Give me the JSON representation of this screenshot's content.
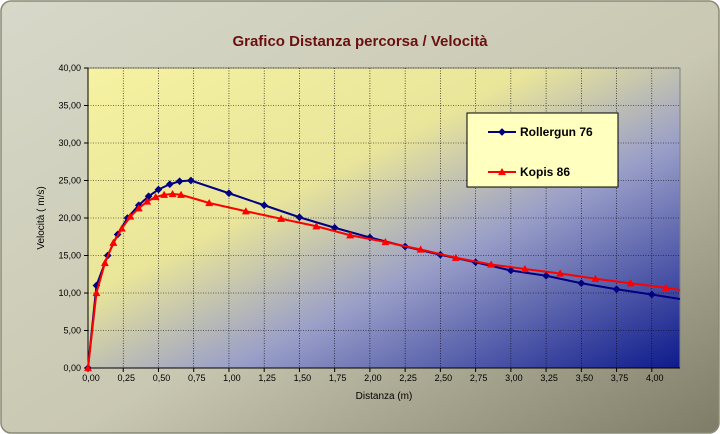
{
  "chart_data": {
    "type": "line",
    "title": "Grafico Distanza percorsa / Velocità",
    "xlabel": "Distanza (m)",
    "ylabel": "Velocità ( m/s)",
    "xlim": [
      0,
      4.2
    ],
    "ylim": [
      0,
      40
    ],
    "x_ticks": [
      "0,00",
      "0,25",
      "0,50",
      "0,75",
      "1,00",
      "1,25",
      "1,50",
      "1,75",
      "2,00",
      "2,25",
      "2,50",
      "2,75",
      "3,00",
      "3,25",
      "3,50",
      "3,75",
      "4,00"
    ],
    "y_ticks": [
      "0,00",
      "5,00",
      "10,00",
      "15,00",
      "20,00",
      "25,00",
      "30,00",
      "35,00",
      "40,00"
    ],
    "grid": true,
    "legend_position": "top-right",
    "series": [
      {
        "name": "Rollergun 76",
        "color": "#000080",
        "marker": "diamond",
        "points": [
          [
            0.0,
            0.0
          ],
          [
            0.06,
            11.0
          ],
          [
            0.14,
            15.0
          ],
          [
            0.21,
            17.8
          ],
          [
            0.28,
            20.0
          ],
          [
            0.36,
            21.7
          ],
          [
            0.43,
            22.9
          ],
          [
            0.5,
            23.8
          ],
          [
            0.58,
            24.5
          ],
          [
            0.65,
            24.9
          ],
          [
            0.73,
            25.0
          ],
          [
            1.0,
            23.3
          ],
          [
            1.25,
            21.7
          ],
          [
            1.5,
            20.1
          ],
          [
            1.75,
            18.7
          ],
          [
            2.0,
            17.4
          ],
          [
            2.25,
            16.2
          ],
          [
            2.5,
            15.1
          ],
          [
            2.75,
            14.1
          ],
          [
            3.0,
            13.0
          ],
          [
            3.25,
            12.3
          ],
          [
            3.5,
            11.3
          ],
          [
            3.75,
            10.5
          ],
          [
            4.0,
            9.8
          ],
          [
            4.2,
            9.2
          ]
        ]
      },
      {
        "name": "Kopis 86",
        "color": "#ff0000",
        "marker": "triangle",
        "points": [
          [
            0.0,
            0.0
          ],
          [
            0.06,
            10.0
          ],
          [
            0.12,
            14.0
          ],
          [
            0.18,
            16.7
          ],
          [
            0.24,
            18.6
          ],
          [
            0.3,
            20.2
          ],
          [
            0.36,
            21.3
          ],
          [
            0.42,
            22.2
          ],
          [
            0.48,
            22.8
          ],
          [
            0.54,
            23.1
          ],
          [
            0.6,
            23.2
          ],
          [
            0.66,
            23.1
          ],
          [
            0.86,
            22.0
          ],
          [
            1.12,
            20.9
          ],
          [
            1.37,
            19.9
          ],
          [
            1.62,
            18.9
          ],
          [
            1.86,
            17.7
          ],
          [
            2.11,
            16.8
          ],
          [
            2.36,
            15.8
          ],
          [
            2.61,
            14.7
          ],
          [
            2.86,
            13.8
          ],
          [
            3.1,
            13.2
          ],
          [
            3.35,
            12.6
          ],
          [
            3.6,
            11.9
          ],
          [
            3.85,
            11.3
          ],
          [
            4.1,
            10.7
          ],
          [
            4.2,
            10.4
          ]
        ]
      }
    ]
  }
}
